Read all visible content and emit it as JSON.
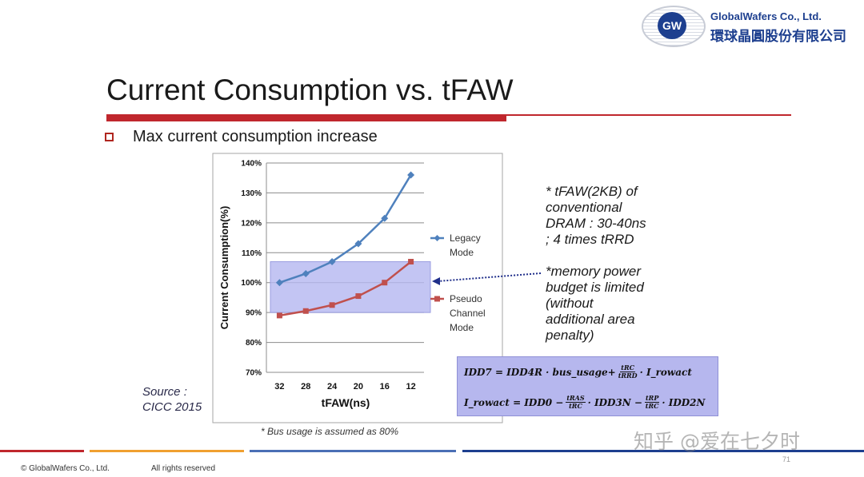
{
  "logo": {
    "mark": "GW",
    "company_en": "GlobalWafers Co., Ltd.",
    "company_cn": "環球晶圓股份有限公司"
  },
  "slide": {
    "title": "Current Consumption vs. tFAW",
    "bullet": "Max current consumption increase"
  },
  "notes": {
    "tfaw": "* tFAW(2KB) of\nconventional\nDRAM : 30-40ns\n; 4 times tRRD",
    "memory": "*memory power\nbudget is limited\n(without\nadditional area\npenalty)"
  },
  "source": "Source :\nCICC 2015",
  "formula": {
    "line1_a": "IDD7 = IDD4R · bus_usage+",
    "line1_frac_num": "tRC",
    "line1_frac_den": "tRRD",
    "line1_b": "· I_rowact",
    "line2_a": "I_rowact = IDD0 −",
    "line2_frac1_num": "tRAS",
    "line2_frac1_den": "tRC",
    "line2_b": "· IDD3N −",
    "line2_frac2_num": "tRP",
    "line2_frac2_den": "tRC",
    "line2_c": "· IDD2N"
  },
  "footnote": "* Bus usage is assumed as 80%",
  "footer": {
    "copyright": "© GlobalWafers Co., Ltd.",
    "rights": "All rights reserved",
    "page": "71"
  },
  "watermark": "知乎 @爱在七夕时",
  "colors": {
    "accent_red": "#c0272d",
    "legacy": "#4f81bd",
    "pseudo": "#c0504d",
    "budget_band": "#b4b6f0"
  },
  "chart_data": {
    "type": "line",
    "xlabel": "tFAW(ns)",
    "ylabel": "Current Consumption(%)",
    "categories": [
      "32",
      "28",
      "24",
      "20",
      "16",
      "12"
    ],
    "yticks": [
      "70%",
      "80%",
      "90%",
      "100%",
      "110%",
      "120%",
      "130%",
      "140%"
    ],
    "ylim": [
      70,
      140
    ],
    "series": [
      {
        "name_lines": [
          "Legacy",
          "Mode"
        ],
        "values": [
          100,
          103,
          107,
          113,
          121.5,
          136
        ],
        "color": "#4f81bd",
        "marker": "diamond"
      },
      {
        "name_lines": [
          "Pseudo",
          "Channel",
          "Mode"
        ],
        "values": [
          89,
          90.5,
          92.5,
          95.5,
          100,
          107
        ],
        "color": "#c0504d",
        "marker": "square"
      }
    ],
    "band": [
      90,
      107
    ],
    "grid": true,
    "legend": "right"
  }
}
